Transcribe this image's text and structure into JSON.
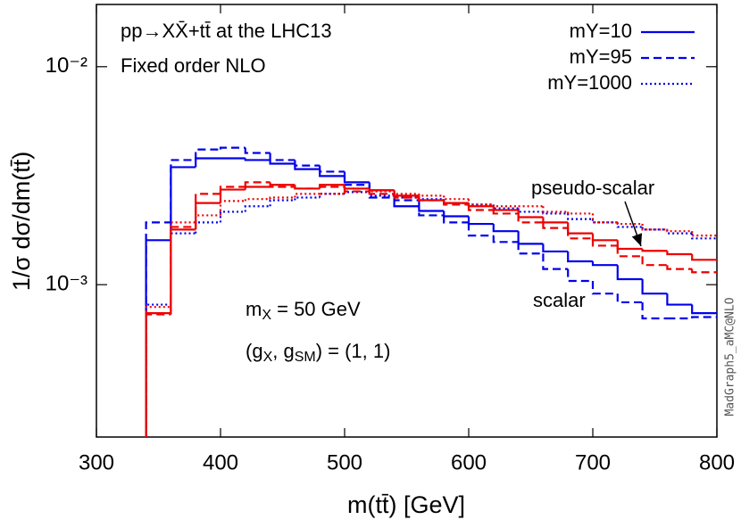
{
  "chart_data": {
    "type": "histogram",
    "title": "pp→XX̄+tt̄ at the LHC13",
    "subtitle": "Fixed order NLO",
    "x_label": "m(tt̄) [GeV]",
    "y_label": "1/σ dσ/dm(tt̄)",
    "watermark": "MadGraph5_aMC@NLO",
    "annotations": {
      "pseudo_scalar": "pseudo-scalar",
      "scalar": "scalar",
      "mass": [
        "m",
        "X",
        " = 50 GeV"
      ],
      "couplings": [
        "(g",
        "X",
        ", g",
        "SM",
        ") = (1, 1)"
      ]
    },
    "xlim": [
      300,
      800
    ],
    "xticks": [
      300,
      400,
      500,
      600,
      700,
      800
    ],
    "ylim": [
      0.0002,
      0.0193
    ],
    "ylog": true,
    "yticks": [
      {
        "value": 0.001,
        "label": "10⁻³"
      },
      {
        "value": 0.01,
        "label": "10⁻²"
      }
    ],
    "legend": "upper right",
    "bins": [
      340,
      360,
      380,
      400,
      420,
      440,
      460,
      480,
      500,
      520,
      540,
      560,
      580,
      600,
      620,
      640,
      660,
      680,
      700,
      720,
      740,
      760,
      780,
      800
    ],
    "series": [
      {
        "name": "mY=10",
        "color": "#0000ee",
        "dash": "solid",
        "values": [
          0.0016,
          0.00346,
          0.0038,
          0.0038,
          0.00373,
          0.00359,
          0.00339,
          0.00315,
          0.00295,
          0.00271,
          0.00229,
          0.00218,
          0.00206,
          0.0019,
          0.00176,
          0.00154,
          0.00142,
          0.00128,
          0.00123,
          0.00106,
          0.00091,
          0.00081,
          0.00074
        ]
      },
      {
        "name": "mY=95",
        "color": "#0000ee",
        "dash": "dashed",
        "values": [
          0.00193,
          0.00373,
          0.00417,
          0.00425,
          0.00402,
          0.00373,
          0.00352,
          0.0033,
          0.00287,
          0.00251,
          0.00244,
          0.00208,
          0.00193,
          0.00168,
          0.00157,
          0.00139,
          0.00118,
          0.00104,
          0.00091,
          0.00083,
          0.0007,
          0.0007,
          0.00071
        ]
      },
      {
        "name": "mY=1000",
        "color": "#0000ee",
        "dash": "dotted",
        "values": [
          0.00081,
          0.00172,
          0.00193,
          0.00216,
          0.00229,
          0.00244,
          0.00251,
          0.00261,
          0.00266,
          0.00256,
          0.00251,
          0.00247,
          0.00237,
          0.00233,
          0.00224,
          0.00216,
          0.00212,
          0.002,
          0.00193,
          0.00184,
          0.00179,
          0.00172,
          0.00163
        ]
      },
      {
        "color": "#ee0000",
        "dash": "solid",
        "values": [
          0.00074,
          0.00179,
          0.00237,
          0.00273,
          0.00281,
          0.00287,
          0.00276,
          0.00287,
          0.00276,
          0.00271,
          0.00256,
          0.00244,
          0.00237,
          0.00229,
          0.0022,
          0.00204,
          0.00193,
          0.00172,
          0.0016,
          0.00146,
          0.00143,
          0.00138,
          0.0013
        ]
      },
      {
        "color": "#ee0000",
        "dash": "dashed",
        "values": [
          0.00073,
          0.00184,
          0.00261,
          0.00281,
          0.00295,
          0.00281,
          0.00276,
          0.00281,
          0.00268,
          0.00261,
          0.00251,
          0.00244,
          0.00233,
          0.0022,
          0.00212,
          0.00193,
          0.00182,
          0.00163,
          0.00151,
          0.00135,
          0.00123,
          0.00118,
          0.00114
        ]
      },
      {
        "color": "#ee0000",
        "dash": "dotted",
        "values": [
          0.00079,
          0.00193,
          0.00208,
          0.00242,
          0.00247,
          0.00251,
          0.00261,
          0.00261,
          0.00276,
          0.00268,
          0.00261,
          0.00256,
          0.00247,
          0.00233,
          0.00229,
          0.00229,
          0.00216,
          0.00212,
          0.00193,
          0.0019,
          0.00179,
          0.00176,
          0.00168
        ]
      }
    ]
  }
}
